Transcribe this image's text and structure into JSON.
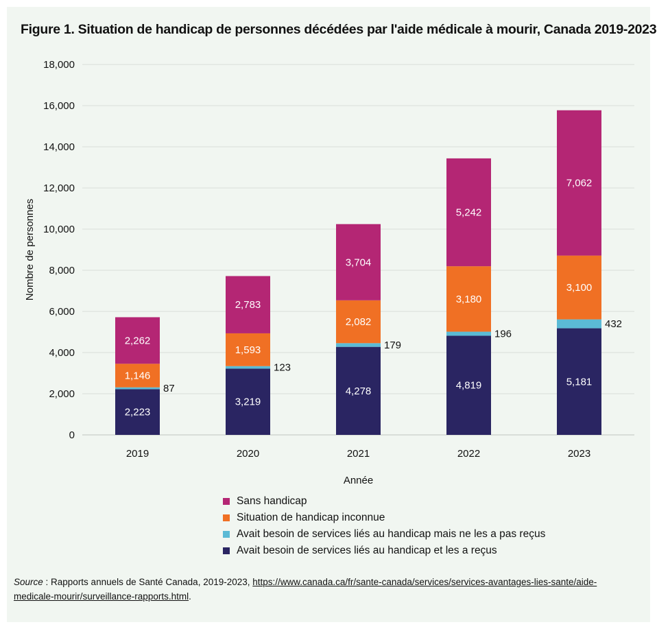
{
  "title": "Figure 1. Situation de handicap de personnes décédées par l'aide médicale à mourir, Canada 2019-2023",
  "chart_data": {
    "type": "bar",
    "stacked": true,
    "categories": [
      "2019",
      "2020",
      "2021",
      "2022",
      "2023"
    ],
    "xlabel": "Année",
    "ylabel": "Nombre de personnes",
    "ylim": [
      0,
      18000
    ],
    "yticks": [
      0,
      2000,
      4000,
      6000,
      8000,
      10000,
      12000,
      14000,
      16000,
      18000
    ],
    "ytick_labels": [
      "0",
      "2,000",
      "4,000",
      "6,000",
      "8,000",
      "10,000",
      "12,000",
      "14,000",
      "16,000",
      "18,000"
    ],
    "grid": true,
    "legend_position": "bottom",
    "series": [
      {
        "name": "Avait besoin de services liés au handicap et les a reçus",
        "values": [
          2223,
          3219,
          4278,
          4819,
          5181
        ],
        "labels": [
          "2,223",
          "3,219",
          "4,278",
          "4,819",
          "5,181"
        ],
        "color": "#2a2562",
        "label_position": "inside"
      },
      {
        "name": "Avait besoin de services liés au handicap mais ne les a pas reçus",
        "values": [
          87,
          123,
          179,
          196,
          432
        ],
        "labels": [
          "87",
          "123",
          "179",
          "196",
          "432"
        ],
        "color": "#5bbad5",
        "label_position": "outside-right"
      },
      {
        "name": "Situation de handicap inconnue",
        "values": [
          1146,
          1593,
          2082,
          3180,
          3100
        ],
        "labels": [
          "1,146",
          "1,593",
          "2,082",
          "3,180",
          "3,100"
        ],
        "color": "#f07024",
        "label_position": "inside"
      },
      {
        "name": "Sans handicap",
        "values": [
          2262,
          2783,
          3704,
          5242,
          7062
        ],
        "labels": [
          "2,262",
          "2,783",
          "3,704",
          "5,242",
          "7,062"
        ],
        "color": "#b42674",
        "label_position": "inside"
      }
    ]
  },
  "legend": [
    {
      "label": "Sans handicap",
      "color": "#b42674"
    },
    {
      "label": "Situation de handicap inconnue",
      "color": "#f07024"
    },
    {
      "label": "Avait besoin de services liés au handicap mais ne les a pas reçus",
      "color": "#5bbad5"
    },
    {
      "label": "Avait besoin de services liés au handicap et les a reçus",
      "color": "#2a2562"
    }
  ],
  "source": {
    "label": "Source",
    "text": " : Rapports annuels de Santé Canada, 2019-2023, ",
    "url": "https://www.canada.ca/fr/sante-canada/services/services-avantages-lies-sante/aide-medicale-mourir/surveillance-rapports.html",
    "end": "."
  }
}
